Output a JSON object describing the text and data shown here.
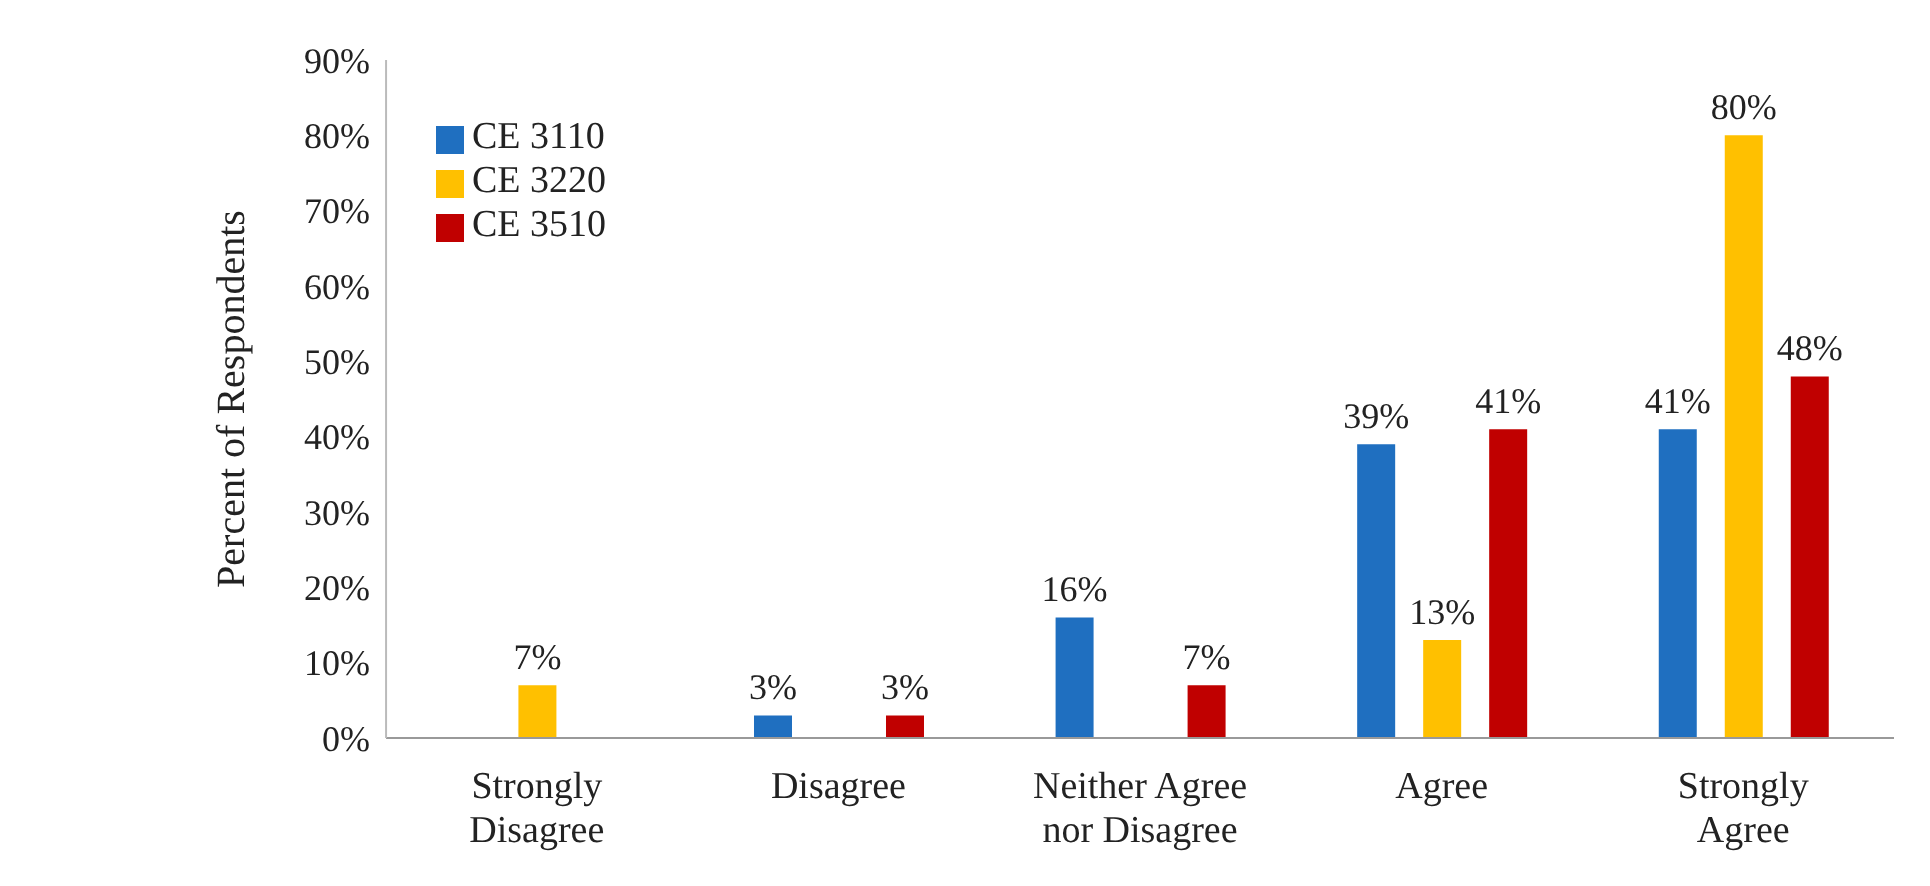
{
  "chart_data": {
    "type": "bar",
    "ylabel": "Percent of Respondents",
    "categories": [
      "Strongly Disagree",
      "Disagree",
      "Neither Agree nor Disagree",
      "Agree",
      "Strongly Agree"
    ],
    "series": [
      {
        "name": "CE 3110",
        "color": "#1f6fc0",
        "values": [
          null,
          3,
          16,
          39,
          41
        ],
        "value_labels": [
          null,
          "3%",
          "16%",
          "39%",
          "41%"
        ]
      },
      {
        "name": "CE 3220",
        "color": "#ffc000",
        "values": [
          7,
          null,
          null,
          13,
          80
        ],
        "value_labels": [
          "7%",
          null,
          null,
          "13%",
          "80%"
        ]
      },
      {
        "name": "CE 3510",
        "color": "#c00000",
        "values": [
          null,
          3,
          7,
          41,
          48
        ],
        "value_labels": [
          null,
          "3%",
          "7%",
          "41%",
          "48%"
        ]
      }
    ],
    "ylim": [
      0,
      90
    ],
    "yticks": [
      {
        "value": 0,
        "label": "0%"
      },
      {
        "value": 10,
        "label": "10%"
      },
      {
        "value": 20,
        "label": "20%"
      },
      {
        "value": 30,
        "label": "30%"
      },
      {
        "value": 40,
        "label": "40%"
      },
      {
        "value": 50,
        "label": "50%"
      },
      {
        "value": 60,
        "label": "60%"
      },
      {
        "value": 70,
        "label": "70%"
      },
      {
        "value": 80,
        "label": "80%"
      },
      {
        "value": 90,
        "label": "90%"
      }
    ],
    "grid": false,
    "legend": "top left"
  }
}
